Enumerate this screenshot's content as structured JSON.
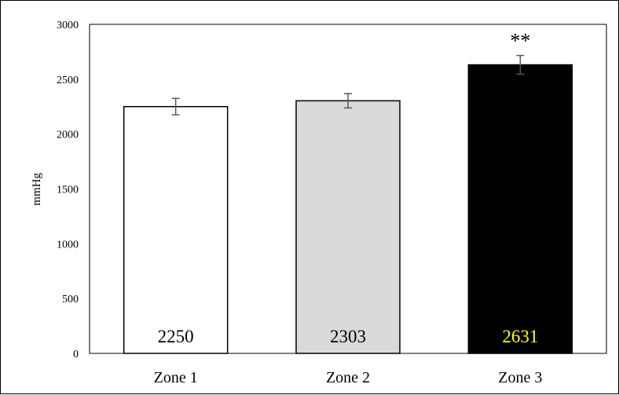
{
  "chart_data": {
    "type": "bar",
    "title": "",
    "xlabel": "",
    "ylabel": "mmHg",
    "ylim": [
      0,
      3000
    ],
    "yticks": [
      0,
      500,
      1000,
      1500,
      2000,
      2500,
      3000
    ],
    "categories": [
      "Zone 1",
      "Zone 2",
      "Zone 3"
    ],
    "values": [
      2250,
      2303,
      2631
    ],
    "value_labels": [
      "2250",
      "2303",
      "2631"
    ],
    "error": [
      75,
      65,
      85
    ],
    "bar_colors": [
      "#ffffff",
      "#d9d9d9",
      "#000000"
    ],
    "label_colors": [
      "#000000",
      "#000000",
      "#ffff00"
    ],
    "annotations": [
      {
        "category": "Zone 3",
        "text": "**"
      }
    ],
    "grid": false,
    "legend": "none"
  }
}
